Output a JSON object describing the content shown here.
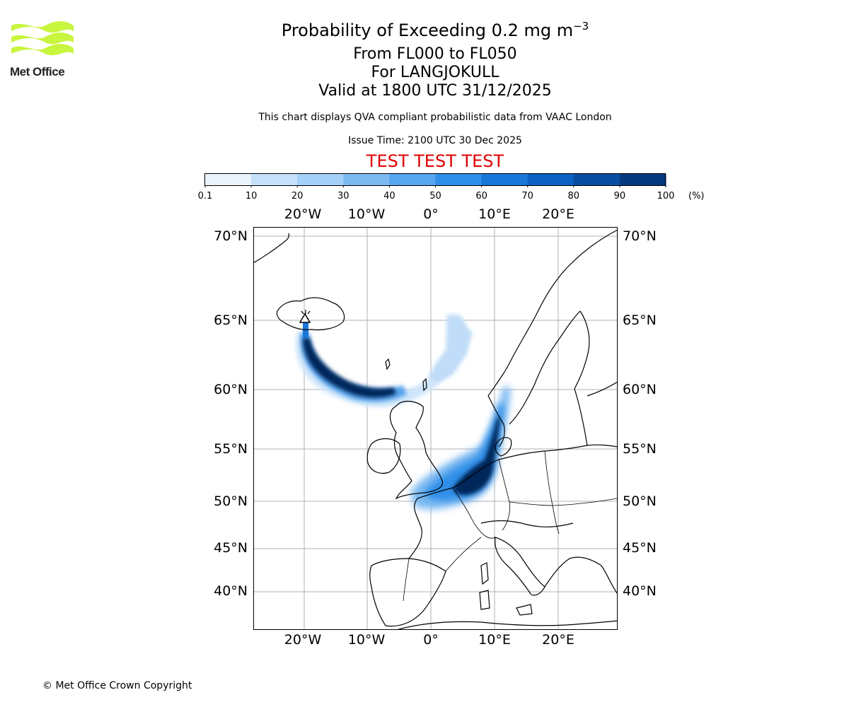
{
  "logo": {
    "text": "Met Office",
    "color": "#c8f53d"
  },
  "title": {
    "main": "Probability of Exceeding 0.2 mg m",
    "exponent": "−3"
  },
  "subtitle": {
    "levels": "From FL000 to FL050",
    "volcano": "For LANGJOKULL",
    "valid": "Valid at 1800 UTC 31/12/2025"
  },
  "info": {
    "description": "This chart displays QVA compliant probabilistic data from VAAC London",
    "issue": "Issue Time: 2100 UTC 30 Dec 2025"
  },
  "test_banner": {
    "text": "TEST TEST TEST",
    "color": "#e00000"
  },
  "colorbar": {
    "ticks": [
      "0.1",
      "10",
      "20",
      "30",
      "40",
      "50",
      "60",
      "70",
      "80",
      "90",
      "100"
    ],
    "unit": "(%)",
    "colors": [
      "#eaf4fd",
      "#c5e1f9",
      "#a4cff7",
      "#7db9f1",
      "#56a5ee",
      "#2f8fe8",
      "#1877d9",
      "#0c61c2",
      "#094ea3",
      "#063a80",
      "#03285a"
    ]
  },
  "map": {
    "lon_labels_top": [
      "20°W",
      "10°W",
      "0°",
      "10°E",
      "20°E"
    ],
    "lon_labels_bottom": [
      "20°W",
      "10°W",
      "0°",
      "10°E",
      "20°E"
    ],
    "lat_labels": [
      "70°N",
      "65°N",
      "60°N",
      "55°N",
      "50°N",
      "45°N",
      "40°N"
    ],
    "volcano_marker": "volcano-triangle"
  },
  "footer": {
    "copyright": "© Met Office Crown Copyright"
  }
}
